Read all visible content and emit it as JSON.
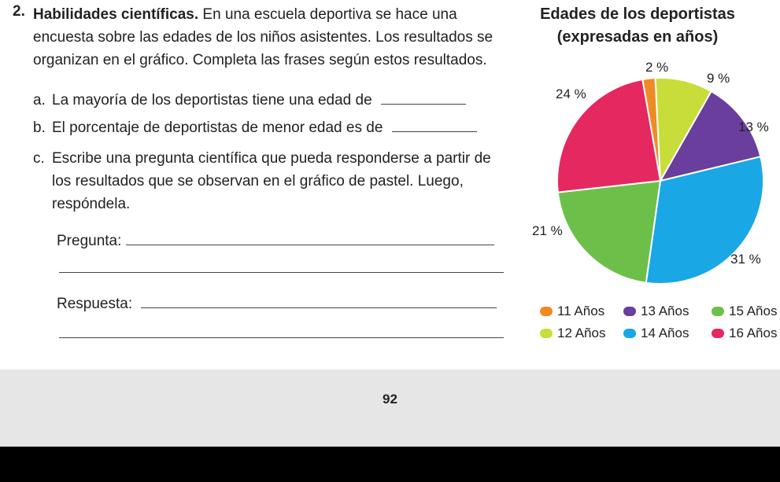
{
  "question": {
    "number": "2.",
    "title": "Habilidades científicas.",
    "intro": " En una escuela deportiva se hace una encuesta sobre las edades de los niños asistentes. Los resultados se organizan en el gráfico. Completa las frases según estos resultados.",
    "items": [
      {
        "letter": "a.",
        "text": "La mayoría de los deportistas tiene una edad de"
      },
      {
        "letter": "b.",
        "text": "El porcentaje de deportistas de menor edad es de"
      },
      {
        "letter": "c.",
        "text": "Escribe una pregunta científica que pueda responderse a partir de los resultados que se observan en el gráfico de pastel. Luego, respóndela."
      }
    ],
    "pregunta_label": "Pregunta:",
    "respuesta_label": "Respuesta:"
  },
  "page_number": "92",
  "chart_data": {
    "type": "pie",
    "title": "Edades de los deportistas",
    "subtitle": "(expresadas en años)",
    "slices": [
      {
        "label": "11 Años",
        "value": 2,
        "pct_label": "2 %",
        "color": "#f08a24"
      },
      {
        "label": "12 Años",
        "value": 9,
        "pct_label": "9 %",
        "color": "#c8dd3a"
      },
      {
        "label": "13 Años",
        "value": 13,
        "pct_label": "13 %",
        "color": "#6a3e9c"
      },
      {
        "label": "14 Años",
        "value": 31,
        "pct_label": "31 %",
        "color": "#1aa7e6"
      },
      {
        "label": "15 Años",
        "value": 21,
        "pct_label": "21 %",
        "color": "#6cc04a"
      },
      {
        "label": "16 Años",
        "value": 24,
        "pct_label": "24 %",
        "color": "#e5285f"
      }
    ],
    "legend": [
      "11 Años",
      "13 Años",
      "15 Años",
      "12 Años",
      "14 Años",
      "16 Años"
    ]
  }
}
